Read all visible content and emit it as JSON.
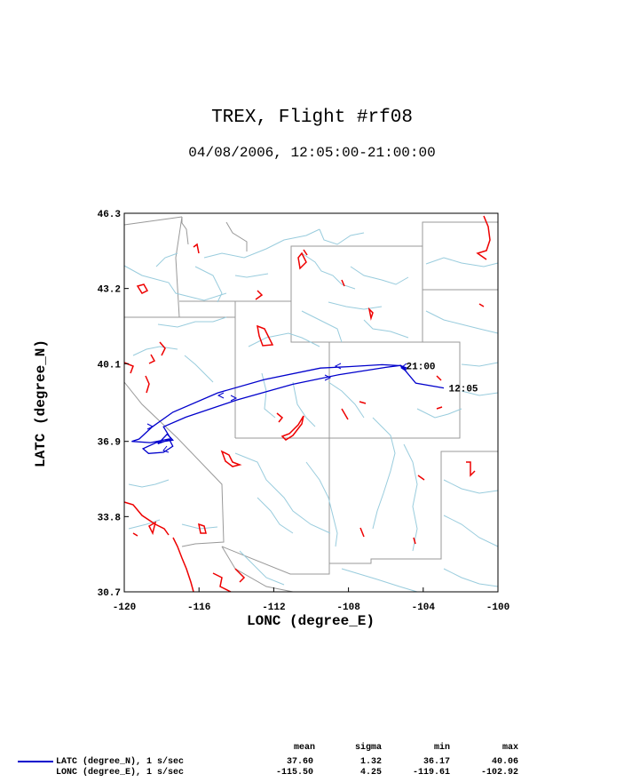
{
  "header": {
    "title": "TREX, Flight #rf08",
    "subtitle": "04/08/2006, 12:05:00-21:00:00"
  },
  "chart_data": {
    "type": "line",
    "xlabel": "LONC (degree_E)",
    "ylabel": "LATC (degree_N)",
    "xlim": [
      -120,
      -100
    ],
    "ylim": [
      30.7,
      46.3
    ],
    "xticks": [
      "-120",
      "-116",
      "-112",
      "-108",
      "-104",
      "-100"
    ],
    "yticks": [
      "46.3",
      "43.2",
      "40.1",
      "36.9",
      "33.8",
      "30.7"
    ],
    "grid": false,
    "series": [
      {
        "color": "#0000cc",
        "x": [
          -102.9,
          -104.4,
          -105.0,
          -105.2,
          -104.8,
          -105.2,
          -106.2,
          -108.0,
          -109.5,
          -112.5,
          -115.0,
          -117.4,
          -118.5,
          -119.2,
          -119.6,
          -118.6,
          -117.6,
          -117.4,
          -117.9,
          -118.7,
          -119.0,
          -118.3,
          -117.4,
          -117.7,
          -118.2,
          -117.5,
          -117.9,
          -116.7,
          -114.0,
          -111.0,
          -108.5,
          -106.0,
          -105.2,
          -104.9
        ],
        "y": [
          39.1,
          39.3,
          39.85,
          40.0,
          39.9,
          40.02,
          40.06,
          39.98,
          39.92,
          39.45,
          38.9,
          38.1,
          37.5,
          37.0,
          36.9,
          36.85,
          37.0,
          36.7,
          36.45,
          36.4,
          36.6,
          36.85,
          36.95,
          37.2,
          36.8,
          37.0,
          37.5,
          37.9,
          38.6,
          39.25,
          39.65,
          39.95,
          40.03,
          39.85
        ]
      }
    ],
    "annotations": [
      {
        "text": "12:05",
        "x": -102.92,
        "y": 39.1
      },
      {
        "text": "21:00",
        "x": -105.2,
        "y": 40.02
      }
    ]
  },
  "legend": {
    "headers": [
      "mean",
      "sigma",
      "min",
      "max"
    ],
    "rows": [
      {
        "label": "LATC (degree_N), 1 s/sec",
        "mean": "37.60",
        "sigma": "1.32",
        "min": "36.17",
        "max": "40.06"
      },
      {
        "label": "LONC (degree_E), 1 s/sec",
        "mean": "-115.50",
        "sigma": "4.25",
        "min": "-119.61",
        "max": "-102.92"
      }
    ]
  }
}
